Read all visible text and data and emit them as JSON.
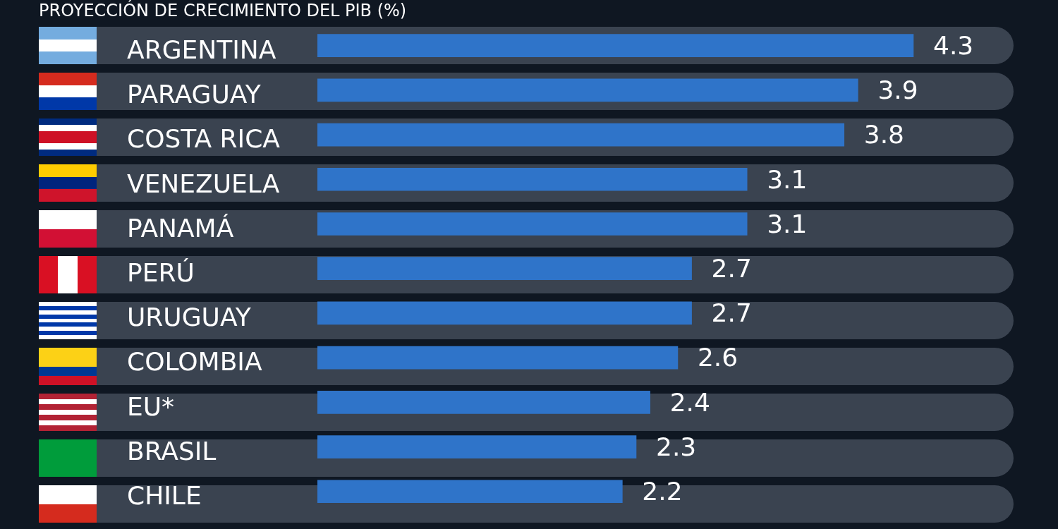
{
  "chart_data": {
    "type": "bar",
    "orientation": "horizontal",
    "title": "PROYECCIÓN DE CRECIMIENTO DEL PIB (%)",
    "categories": [
      "ARGENTINA",
      "PARAGUAY",
      "COSTA RICA",
      "VENEZUELA",
      "PANAMÁ",
      "PERÚ",
      "URUGUAY",
      "COLOMBIA",
      "EU*",
      "BRASIL",
      "CHILE"
    ],
    "values": [
      4.3,
      3.9,
      3.8,
      3.1,
      3.1,
      2.7,
      2.7,
      2.6,
      2.4,
      2.3,
      2.2
    ],
    "color": "#2f74c9",
    "data_labels": true
  }
}
